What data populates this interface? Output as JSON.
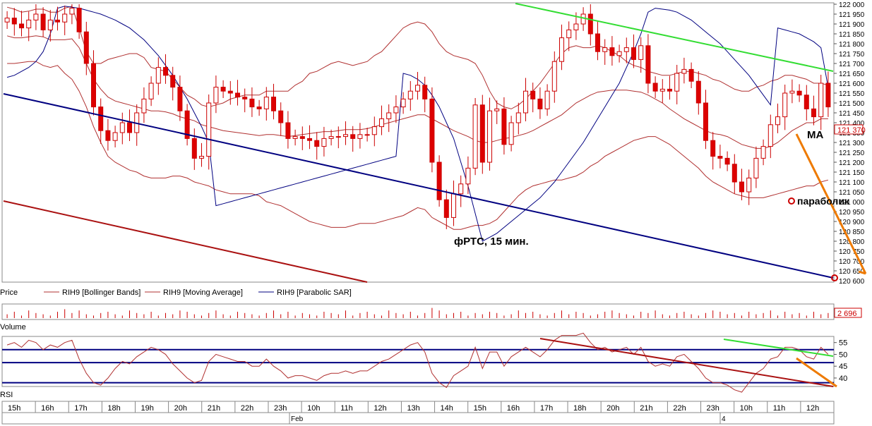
{
  "labels": {
    "title": "фРТС,  15 мин.",
    "ma": "MA",
    "sar": "параболик",
    "price_box": "121 370",
    "volume_box": "2 696",
    "volume_pane": "Volume",
    "rsi_pane": "RSI"
  },
  "legend": [
    {
      "label": "Price",
      "color": "#cc0000"
    },
    {
      "label": "RIH9 [Bollinger Bands]",
      "color": "#b03030"
    },
    {
      "label": "RIH9 [Moving Average]",
      "color": "#b03030"
    },
    {
      "label": "RIH9 [Parabolic SAR]",
      "color": "#000080"
    }
  ],
  "chart_data": [
    {
      "type": "candlestick",
      "ylim": [
        120600,
        122000
      ],
      "yticks": [
        122000,
        121950,
        121900,
        121850,
        121800,
        121750,
        121700,
        121650,
        121600,
        121550,
        121500,
        121450,
        121400,
        121350,
        121300,
        121250,
        121200,
        121150,
        121100,
        121050,
        121000,
        120950,
        120900,
        120850,
        120800,
        120750,
        120700,
        120650,
        120600
      ],
      "ytick_labels": [
        "122 000",
        "121 950",
        "121 900",
        "121 850",
        "121 800",
        "121 750",
        "121 700",
        "121 650",
        "121 600",
        "121 550",
        "121 500",
        "121 450",
        "121 400",
        "121 350",
        "121 300",
        "121 250",
        "121 200",
        "121 150",
        "121 100",
        "121 050",
        "121 000",
        "120 950",
        "120 900",
        "120 850",
        "120 800",
        "120 750",
        "120 700",
        "120 650",
        "120 600"
      ],
      "n_bars": 115,
      "close": [
        121930,
        121900,
        121880,
        121920,
        121950,
        121870,
        121920,
        121910,
        121950,
        121980,
        121860,
        121700,
        121480,
        121360,
        121310,
        121350,
        121400,
        121350,
        121450,
        121520,
        121600,
        121680,
        121640,
        121580,
        121460,
        121320,
        121220,
        121230,
        121500,
        121580,
        121560,
        121550,
        121530,
        121520,
        121480,
        121470,
        121530,
        121460,
        121400,
        121320,
        121330,
        121320,
        121310,
        121280,
        121320,
        121330,
        121330,
        121340,
        121320,
        121340,
        121340,
        121380,
        121420,
        121450,
        121480,
        121520,
        121560,
        121590,
        121520,
        121200,
        121010,
        120920,
        121040,
        121090,
        121170,
        121490,
        121200,
        121460,
        121470,
        121290,
        121400,
        121450,
        121560,
        121520,
        121470,
        121560,
        121710,
        121830,
        121870,
        121900,
        121950,
        121850,
        121760,
        121780,
        121740,
        121760,
        121780,
        121720,
        121790,
        121600,
        121560,
        121570,
        121560,
        121650,
        121670,
        121610,
        121500,
        121310,
        121230,
        121220,
        121190,
        121100,
        121050,
        121120,
        121220,
        121280,
        121390,
        121430,
        121550,
        121560,
        121540,
        121470,
        121430,
        121600,
        121480
      ],
      "series": [
        {
          "name": "RIH9 [Bollinger Bands]",
          "kind": "upper",
          "values": [
            121985,
            121975,
            121960,
            121965,
            121975,
            121975,
            121960,
            121960,
            121980,
            121990,
            121880,
            121760,
            121700,
            121700,
            121720,
            121730,
            121740,
            121750,
            121750,
            121730,
            121680,
            121670,
            121660,
            121620,
            121580,
            121540,
            121520,
            121490,
            121480,
            121490,
            121500,
            121520,
            121530,
            121540,
            121540,
            121540,
            121560,
            121560,
            121560,
            121560,
            121590,
            121610,
            121650,
            121660,
            121680,
            121700,
            121710,
            121700,
            121690,
            121700,
            121710,
            121740,
            121760,
            121800,
            121840,
            121880,
            121900,
            121910,
            121900,
            121860,
            121800,
            121760,
            121740,
            121730,
            121720,
            121700,
            121640,
            121560,
            121500,
            121480,
            121470,
            121490,
            121520,
            121560,
            121600,
            121650,
            121700,
            121750,
            121780,
            121790,
            121780,
            121780,
            121790,
            121780,
            121760,
            121740,
            121710,
            121690,
            121680,
            121660,
            121650,
            121640,
            121640,
            121650,
            121660,
            121660,
            121650,
            121640,
            121620,
            121610,
            121590,
            121570,
            121560,
            121560,
            121580,
            121590,
            121610,
            121620,
            121640,
            121640,
            121630,
            121620,
            121600,
            121600,
            121590
          ]
        },
        {
          "name": "RIH9 [Moving Average]",
          "kind": "ma",
          "values": [
            121840,
            121830,
            121830,
            121835,
            121840,
            121835,
            121820,
            121820,
            121820,
            121825,
            121780,
            121700,
            121620,
            121570,
            121530,
            121510,
            121500,
            121490,
            121480,
            121470,
            121460,
            121460,
            121455,
            121445,
            121430,
            121420,
            121410,
            121390,
            121380,
            121370,
            121360,
            121355,
            121350,
            121345,
            121340,
            121335,
            121340,
            121340,
            121335,
            121330,
            121335,
            121340,
            121345,
            121350,
            121355,
            121355,
            121360,
            121365,
            121365,
            121365,
            121370,
            121380,
            121390,
            121400,
            121410,
            121420,
            121430,
            121440,
            121440,
            121420,
            121400,
            121380,
            121360,
            121345,
            121330,
            121310,
            121300,
            121300,
            121310,
            121320,
            121325,
            121335,
            121345,
            121360,
            121380,
            121400,
            121420,
            121440,
            121470,
            121500,
            121520,
            121540,
            121555,
            121560,
            121565,
            121565,
            121565,
            121560,
            121555,
            121540,
            121520,
            121500,
            121470,
            121445,
            121420,
            121400,
            121380,
            121360,
            121345,
            121340,
            121330,
            121310,
            121290,
            121280,
            121270,
            121270,
            121280,
            121300,
            121330,
            121360,
            121380,
            121400,
            121400,
            121420,
            121420
          ]
        },
        {
          "name": "RIH9 [Bollinger Bands]",
          "kind": "lower",
          "values": [
            121700,
            121700,
            121705,
            121710,
            121710,
            121690,
            121680,
            121690,
            121650,
            121620,
            121560,
            121480,
            121380,
            121300,
            121230,
            121200,
            121180,
            121160,
            121150,
            121130,
            121120,
            121120,
            121120,
            121130,
            121130,
            121120,
            121100,
            121090,
            121080,
            121060,
            121050,
            121040,
            121040,
            121040,
            121040,
            121030,
            121000,
            120990,
            120980,
            120960,
            120940,
            120920,
            120900,
            120890,
            120880,
            120870,
            120870,
            120870,
            120880,
            120890,
            120890,
            120890,
            120900,
            120910,
            120920,
            120930,
            120950,
            120970,
            120960,
            120920,
            120900,
            120880,
            120860,
            120860,
            120870,
            120880,
            120880,
            120890,
            120910,
            120950,
            120990,
            121030,
            121060,
            121080,
            121090,
            121100,
            121110,
            121110,
            121120,
            121130,
            121150,
            121180,
            121200,
            121230,
            121250,
            121270,
            121290,
            121310,
            121320,
            121330,
            121330,
            121310,
            121290,
            121260,
            121230,
            121200,
            121170,
            121130,
            121100,
            121080,
            121060,
            121040,
            121030,
            121020,
            121020,
            121020,
            121030,
            121040,
            121050,
            121060,
            121070,
            121080,
            121080,
            121100,
            121110
          ]
        },
        {
          "name": "RIH9 [Parabolic SAR]",
          "kind": "sar",
          "values": [
            121630,
            121640,
            121660,
            121680,
            121710,
            121760,
            121850,
            121980,
            121990,
            121985,
            121980,
            121970,
            121960,
            121950,
            121935,
            121920,
            121900,
            121880,
            121850,
            121820,
            121780,
            121740,
            121690,
            121640,
            121580,
            121520,
            121450,
            121380,
            121300,
            120980,
            120990,
            121000,
            121010,
            121020,
            121030,
            121040,
            121050,
            121060,
            121070,
            121080,
            121090,
            121100,
            121110,
            121120,
            121130,
            121140,
            121150,
            121160,
            121170,
            121180,
            121190,
            121200,
            121210,
            121220,
            121230,
            121650,
            121640,
            121620,
            121590,
            121540,
            121480,
            121400,
            121320,
            121200,
            121080,
            120940,
            120800,
            120820,
            120840,
            120870,
            120900,
            120930,
            120960,
            120990,
            121020,
            121060,
            121100,
            121150,
            121200,
            121250,
            121300,
            121360,
            121420,
            121480,
            121540,
            121600,
            121680,
            121760,
            121850,
            121960,
            121980,
            121975,
            121970,
            121960,
            121940,
            121920,
            121890,
            121860,
            121830,
            121800,
            121760,
            121720,
            121680,
            121640,
            121590,
            121540,
            121490,
            121880,
            121870,
            121860,
            121850,
            121830,
            121810,
            121780,
            121580
          ]
        },
        {
          "name": "Volume",
          "kind": "volume",
          "values": [
            3,
            5,
            2,
            6,
            4,
            3,
            2,
            5,
            7,
            4,
            6,
            3,
            2,
            4,
            5,
            3,
            2,
            6,
            4,
            3,
            5,
            2,
            4,
            3,
            6,
            5,
            3,
            2,
            4,
            6,
            3,
            2,
            5,
            4,
            3,
            2,
            4,
            6,
            3,
            5,
            2,
            4,
            3,
            2,
            5,
            4,
            3,
            6,
            2,
            4,
            5,
            3,
            2,
            6,
            4,
            3,
            5,
            2,
            4,
            8,
            6,
            3,
            4,
            5,
            2,
            4,
            3,
            5,
            4,
            2,
            3,
            6,
            4,
            5,
            3,
            2,
            4,
            6,
            3,
            5,
            4,
            2,
            3,
            5,
            6,
            4,
            3,
            2,
            5,
            4,
            6,
            3,
            2,
            4,
            5,
            3,
            2,
            4,
            6,
            5,
            3,
            4,
            2,
            5,
            3,
            4,
            6,
            2,
            5,
            3,
            4,
            2,
            5,
            3,
            4
          ]
        },
        {
          "name": "RSI",
          "kind": "rsi",
          "values": [
            54,
            55,
            53,
            56,
            55,
            52,
            54,
            53,
            55,
            56,
            48,
            42,
            38,
            37,
            40,
            44,
            47,
            46,
            49,
            51,
            53,
            52,
            50,
            46,
            43,
            40,
            38,
            39,
            47,
            50,
            49,
            48,
            47,
            47,
            45,
            45,
            48,
            45,
            43,
            40,
            41,
            41,
            40,
            39,
            41,
            42,
            42,
            43,
            42,
            43,
            43,
            45,
            47,
            48,
            50,
            52,
            54,
            55,
            51,
            42,
            38,
            36,
            41,
            43,
            45,
            53,
            44,
            51,
            51,
            45,
            49,
            51,
            53,
            51,
            49,
            52,
            56,
            58,
            58,
            58,
            59,
            55,
            52,
            53,
            51,
            52,
            53,
            50,
            53,
            47,
            45,
            46,
            45,
            49,
            50,
            47,
            44,
            40,
            38,
            38,
            37,
            35,
            34,
            38,
            42,
            44,
            48,
            49,
            53,
            53,
            52,
            49,
            48,
            53,
            50
          ]
        }
      ],
      "rsi_ylim": [
        37,
        57
      ],
      "rsi_ticks": [
        55,
        50,
        45,
        40
      ],
      "x_tick_labels": [
        "15h",
        "16h",
        "17h",
        "18h",
        "19h",
        "20h",
        "21h",
        "22h",
        "23h",
        "10h",
        "11h",
        "12h",
        "13h",
        "14h",
        "15h",
        "16h",
        "17h",
        "18h",
        "20h",
        "21h",
        "22h",
        "23h",
        "10h",
        "11h",
        "12h"
      ],
      "date_labels": [
        "Feb",
        "4"
      ]
    }
  ]
}
